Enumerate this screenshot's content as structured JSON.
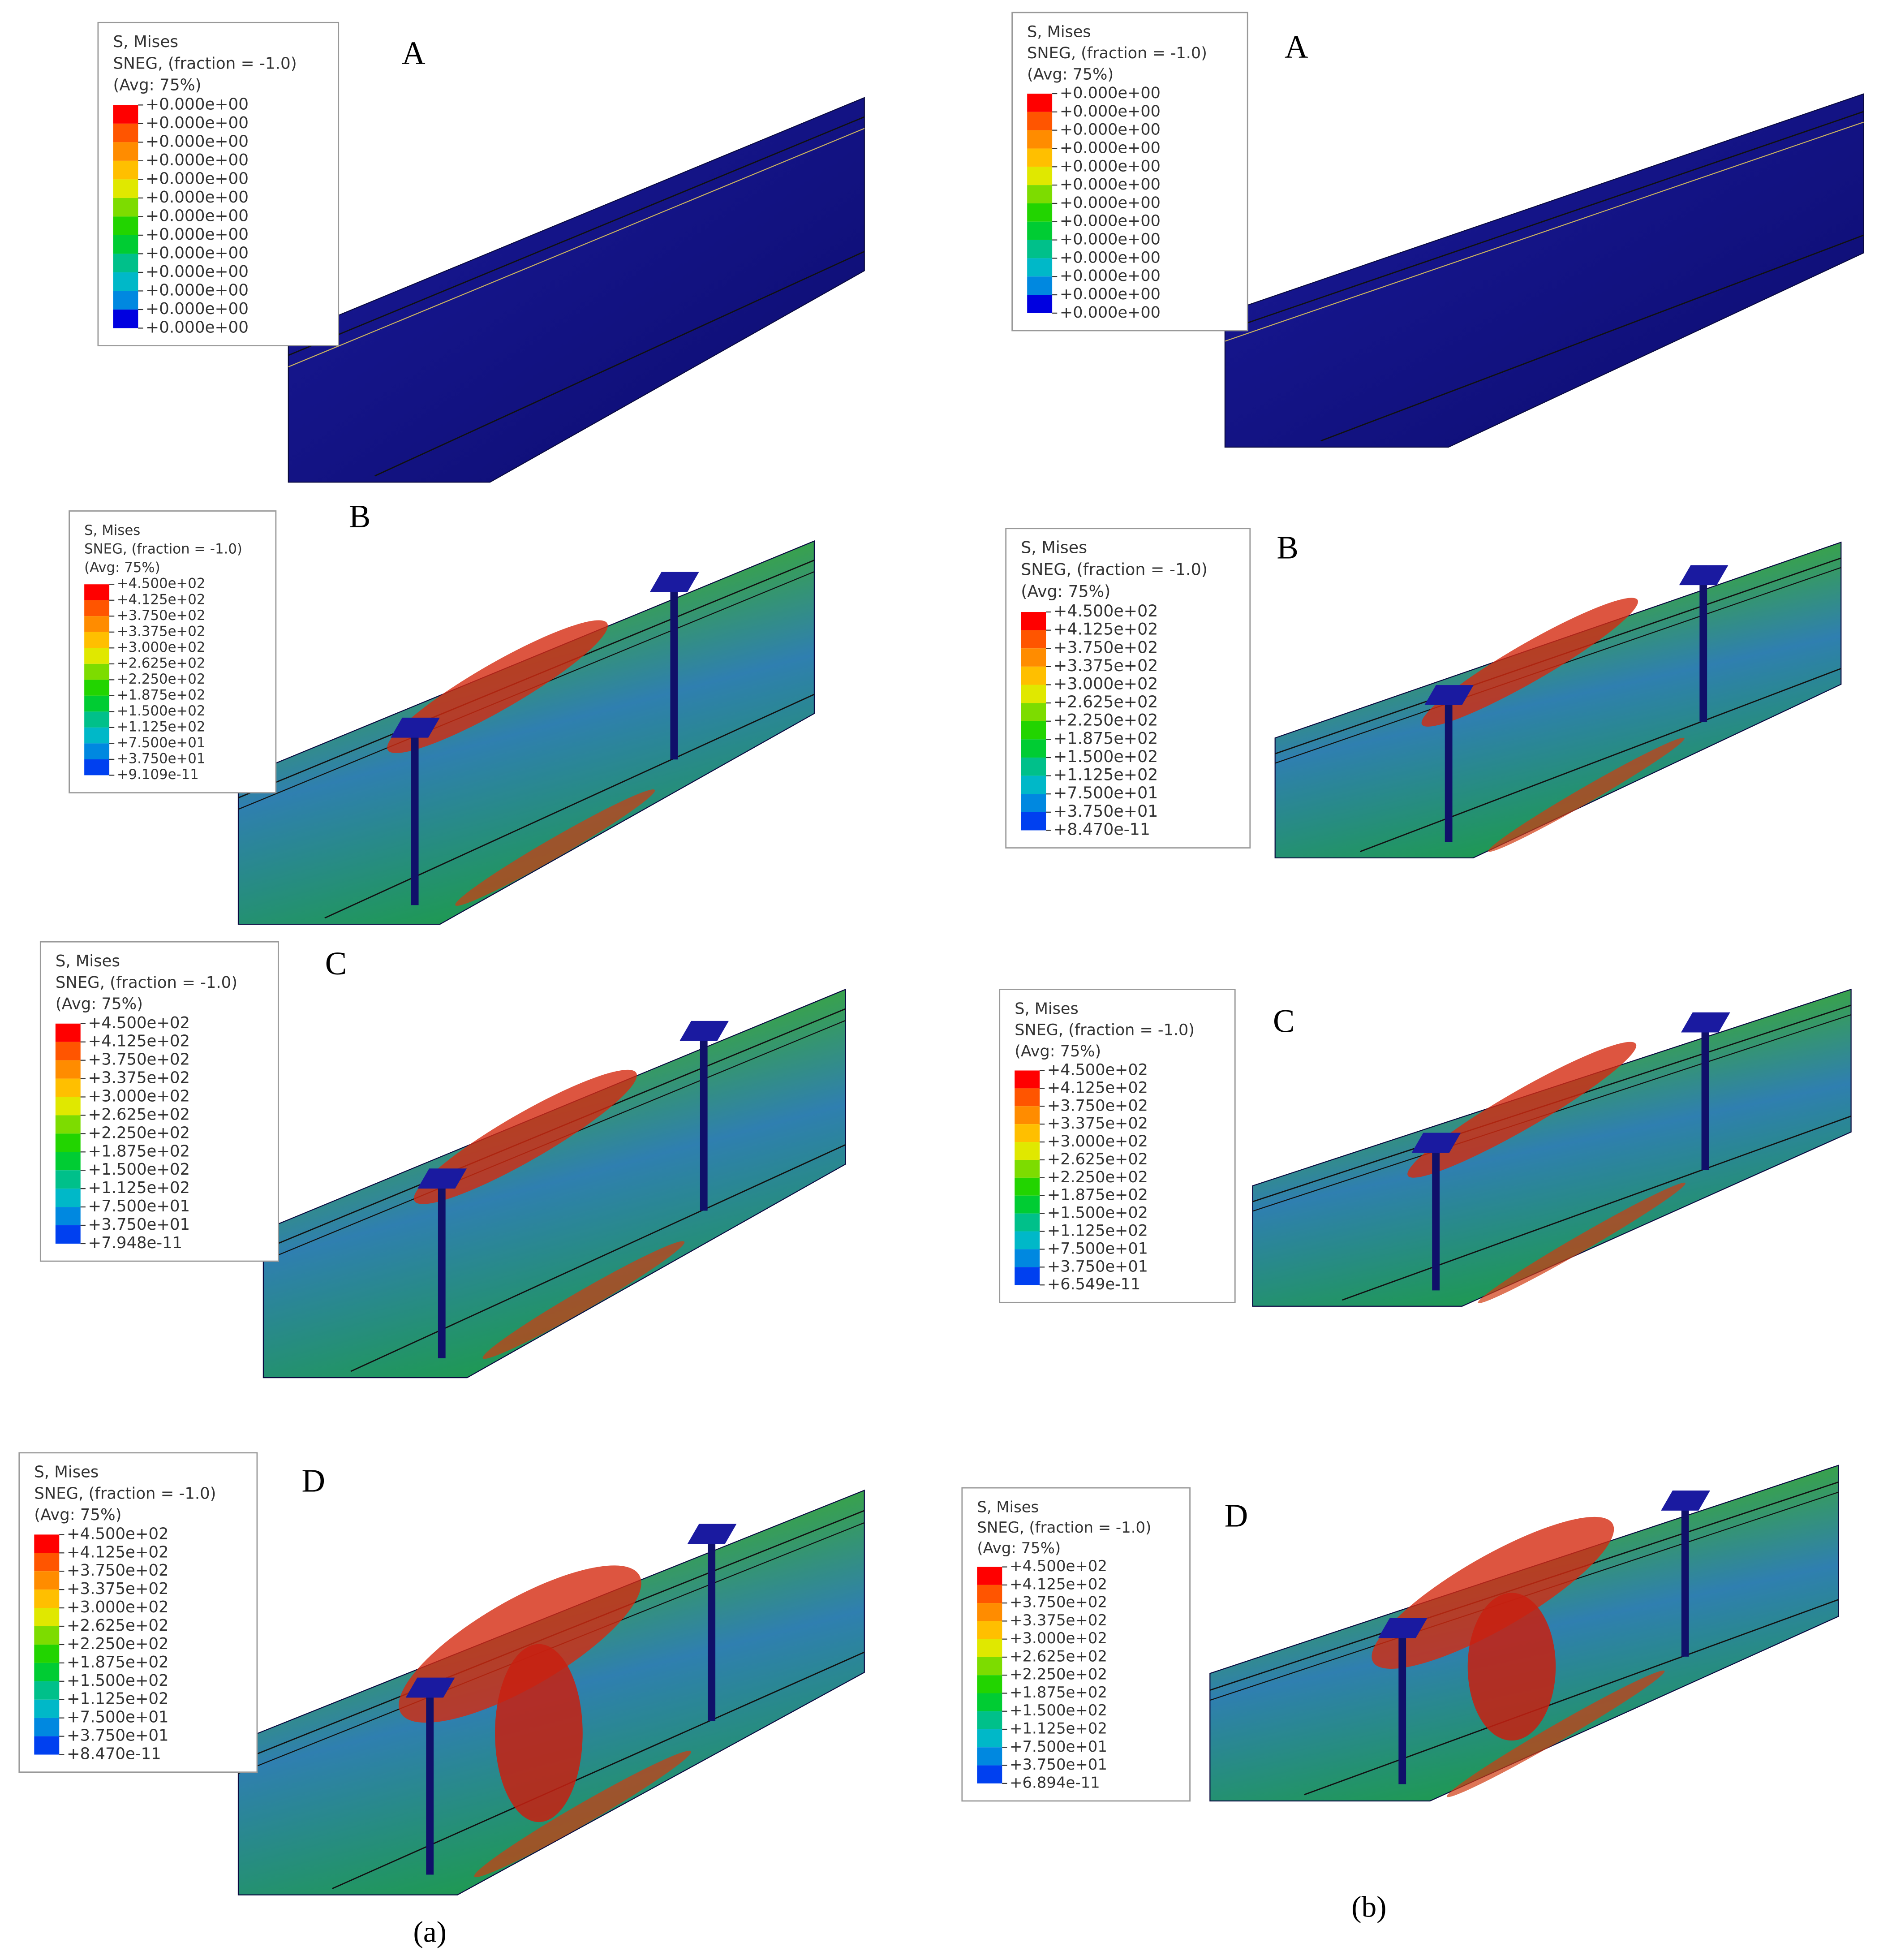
{
  "panels": [
    {
      "label": "A",
      "legend": {
        "lines": [
          "S, Mises",
          "SNEG, (fraction = -1.0)",
          "(Avg: 75%)"
        ],
        "values": [
          "+0.000e+00",
          "+0.000e+00",
          "+0.000e+00",
          "+0.000e+00",
          "+0.000e+00",
          "+0.000e+00",
          "+0.000e+00",
          "+0.000e+00",
          "+0.000e+00",
          "+0.000e+00",
          "+0.000e+00",
          "+0.000e+00",
          "+0.000e+00"
        ]
      }
    },
    {
      "label": "A",
      "legend": {
        "lines": [
          "S, Mises",
          "SNEG, (fraction = -1.0)",
          "(Avg: 75%)"
        ],
        "values": [
          "+0.000e+00",
          "+0.000e+00",
          "+0.000e+00",
          "+0.000e+00",
          "+0.000e+00",
          "+0.000e+00",
          "+0.000e+00",
          "+0.000e+00",
          "+0.000e+00",
          "+0.000e+00",
          "+0.000e+00",
          "+0.000e+00",
          "+0.000e+00"
        ]
      }
    },
    {
      "label": "B",
      "legend": {
        "lines": [
          "S, Mises",
          "SNEG, (fraction = -1.0)",
          "(Avg: 75%)"
        ],
        "values": [
          "+4.500e+02",
          "+4.125e+02",
          "+3.750e+02",
          "+3.375e+02",
          "+3.000e+02",
          "+2.625e+02",
          "+2.250e+02",
          "+1.875e+02",
          "+1.500e+02",
          "+1.125e+02",
          "+7.500e+01",
          "+3.750e+01",
          "+9.109e-11"
        ]
      }
    },
    {
      "label": "B",
      "legend": {
        "lines": [
          "S, Mises",
          "SNEG, (fraction = -1.0)",
          "(Avg: 75%)"
        ],
        "values": [
          "+4.500e+02",
          "+4.125e+02",
          "+3.750e+02",
          "+3.375e+02",
          "+3.000e+02",
          "+2.625e+02",
          "+2.250e+02",
          "+1.875e+02",
          "+1.500e+02",
          "+1.125e+02",
          "+7.500e+01",
          "+3.750e+01",
          "+8.470e-11"
        ]
      }
    },
    {
      "label": "C",
      "legend": {
        "lines": [
          "S, Mises",
          "SNEG, (fraction = -1.0)",
          "(Avg: 75%)"
        ],
        "values": [
          "+4.500e+02",
          "+4.125e+02",
          "+3.750e+02",
          "+3.375e+02",
          "+3.000e+02",
          "+2.625e+02",
          "+2.250e+02",
          "+1.875e+02",
          "+1.500e+02",
          "+1.125e+02",
          "+7.500e+01",
          "+3.750e+01",
          "+7.948e-11"
        ]
      }
    },
    {
      "label": "C",
      "legend": {
        "lines": [
          "S, Mises",
          "SNEG, (fraction = -1.0)",
          "(Avg: 75%)"
        ],
        "values": [
          "+4.500e+02",
          "+4.125e+02",
          "+3.750e+02",
          "+3.375e+02",
          "+3.000e+02",
          "+2.625e+02",
          "+2.250e+02",
          "+1.875e+02",
          "+1.500e+02",
          "+1.125e+02",
          "+7.500e+01",
          "+3.750e+01",
          "+6.549e-11"
        ]
      }
    },
    {
      "label": "D",
      "legend": {
        "lines": [
          "S, Mises",
          "SNEG, (fraction = -1.0)",
          "(Avg: 75%)"
        ],
        "values": [
          "+4.500e+02",
          "+4.125e+02",
          "+3.750e+02",
          "+3.375e+02",
          "+3.000e+02",
          "+2.625e+02",
          "+2.250e+02",
          "+1.875e+02",
          "+1.500e+02",
          "+1.125e+02",
          "+7.500e+01",
          "+3.750e+01",
          "+8.470e-11"
        ]
      }
    },
    {
      "label": "D",
      "legend": {
        "lines": [
          "S, Mises",
          "SNEG, (fraction = -1.0)",
          "(Avg: 75%)"
        ],
        "values": [
          "+4.500e+02",
          "+4.125e+02",
          "+3.750e+02",
          "+3.375e+02",
          "+3.000e+02",
          "+2.625e+02",
          "+2.250e+02",
          "+1.875e+02",
          "+1.500e+02",
          "+1.125e+02",
          "+7.500e+01",
          "+3.750e+01",
          "+6.894e-11"
        ]
      }
    }
  ],
  "captions": [
    "(a)",
    "(b)"
  ]
}
